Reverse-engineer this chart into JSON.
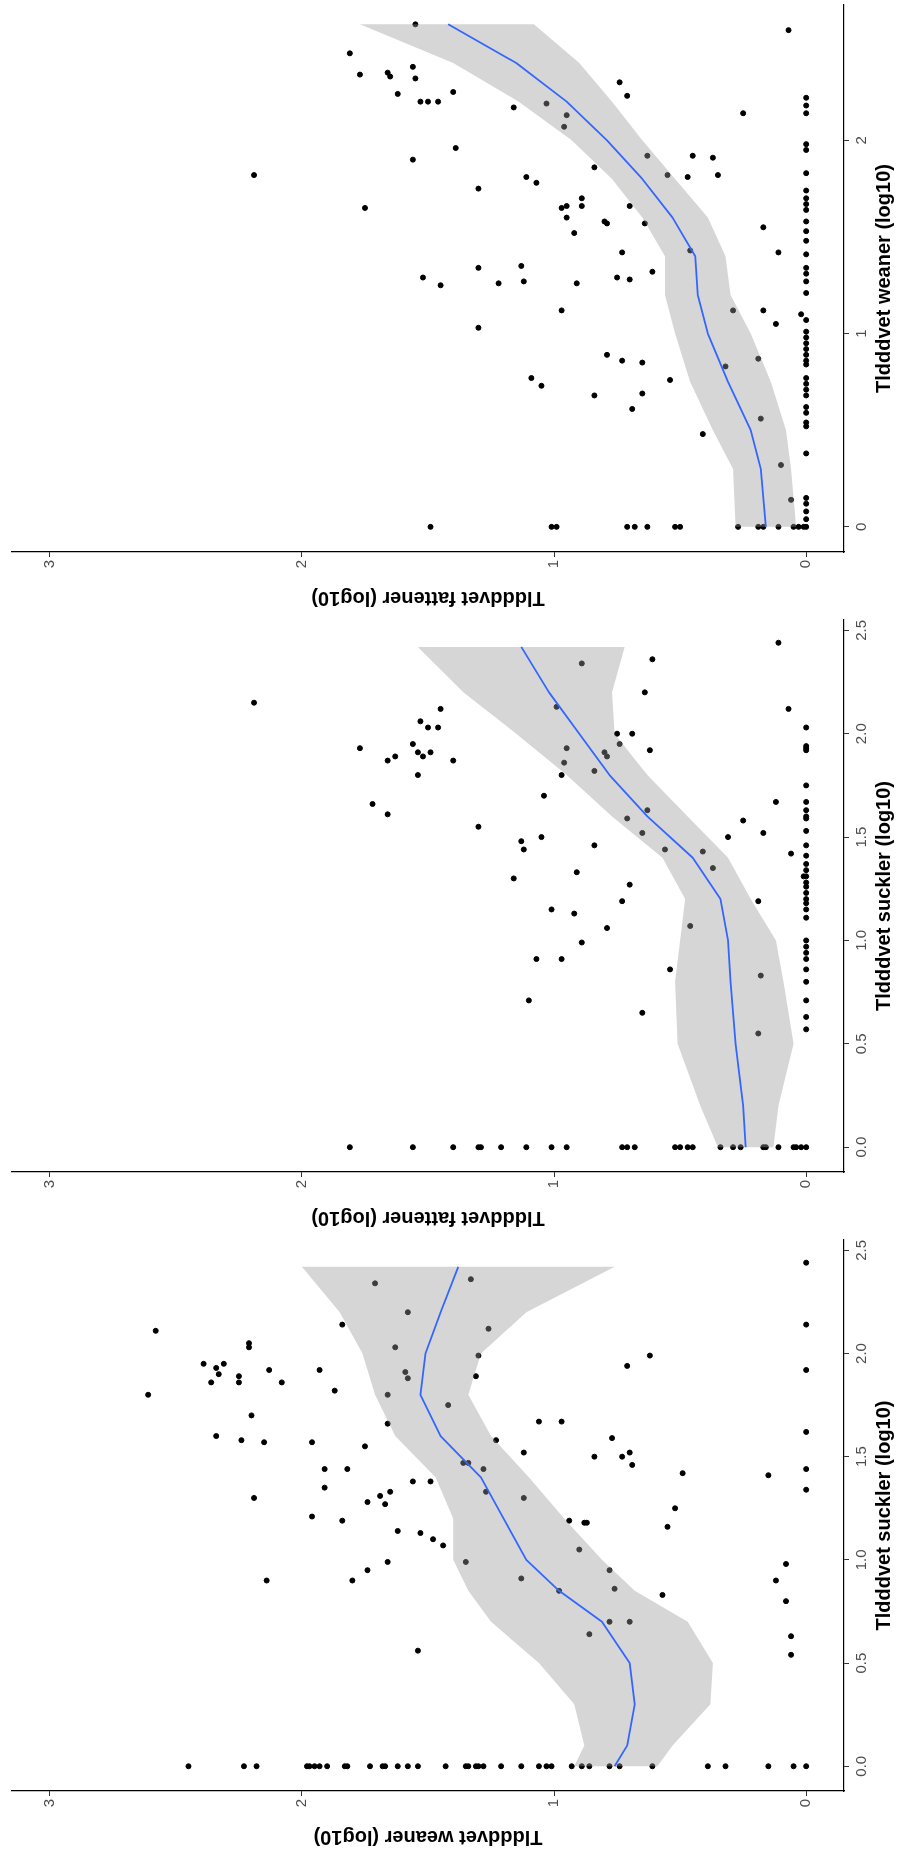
{
  "chart_data": [
    {
      "type": "scatter",
      "xlabel": "Tldddvet weaner (log10)",
      "ylabel": "Tldddvet suckler (log10)",
      "xlim": [
        3.15,
        -0.15
      ],
      "xticks": [
        0,
        1,
        2,
        3
      ],
      "ylim": [
        -0.12,
        2.55
      ],
      "yticks": [
        {
          "value": 0,
          "label": "0.0"
        },
        {
          "value": 0.5,
          "label": "0.5"
        },
        {
          "value": 1,
          "label": "1.0"
        },
        {
          "value": 1.5,
          "label": "1.5"
        },
        {
          "value": 2,
          "label": "2.0"
        },
        {
          "value": 2.5,
          "label": "2.5"
        }
      ],
      "series": [
        {
          "type": "scatter",
          "color": "#000000",
          "marker": "circle",
          "values": [
            0,
            0,
            0,
            0,
            0,
            0,
            0,
            0,
            0,
            0,
            0,
            0,
            0,
            0,
            0,
            0,
            0,
            0,
            0,
            0,
            0,
            0,
            0,
            0,
            0,
            0,
            0,
            0,
            0,
            0,
            0,
            0,
            0,
            0,
            0,
            0,
            0,
            0,
            1.21,
            1.19,
            1.14,
            1.13,
            1.1,
            1.07,
            1.19,
            1.18,
            1.18,
            1.16,
            1.05,
            0.9,
            0.9,
            0.95,
            0.99,
            0.99,
            0.91,
            0.85,
            0.95,
            0.86,
            0.83,
            0.7,
            0.7,
            0.64,
            0.56,
            0.9,
            0.98,
            0.8,
            0.63,
            0.54,
            2.44,
            2.14,
            1.92,
            1.62,
            1.44,
            1.34,
            2.11,
            1.8,
            1.95,
            1.93,
            1.95,
            1.9,
            1.86,
            1.86,
            1.89,
            2.05,
            2.03,
            1.92,
            1.86,
            1.7,
            1.6,
            1.58,
            1.57,
            1.92,
            1.82,
            2.14,
            2.34,
            2.2,
            2.03,
            1.91,
            1.88,
            1.8,
            1.66,
            1.75,
            1.57,
            1.44,
            1.44,
            1.55,
            1.35,
            1.28,
            1.31,
            1.27,
            1.33,
            1.38,
            1.38,
            1.3,
            1.25,
            2.36,
            2.12,
            1.99,
            1.89,
            1.47,
            1.47,
            1.44,
            1.33,
            1.58,
            1.52,
            1.3,
            1.67,
            1.67,
            1.5,
            1.59,
            1.5,
            1.52,
            1.46,
            1.94,
            1.99,
            1.42,
            1.41
          ],
          "x": [
            2.45,
            2.23,
            2.18,
            1.98,
            1.97,
            1.95,
            1.93,
            1.9,
            1.83,
            1.82,
            1.73,
            1.68,
            1.67,
            1.62,
            1.58,
            1.54,
            1.43,
            1.35,
            1.34,
            1.31,
            1.3,
            1.28,
            1.21,
            1.13,
            1.06,
            1.03,
            1.01,
            0.93,
            0.89,
            0.86,
            0.78,
            0.74,
            0.61,
            0.39,
            0.32,
            0.15,
            0.05,
            0,
            1.96,
            1.84,
            1.62,
            1.53,
            1.48,
            1.44,
            0.94,
            0.88,
            0.87,
            0.55,
            0.9,
            2.14,
            1.8,
            1.74,
            1.66,
            1.35,
            1.13,
            0.98,
            0.78,
            0.76,
            0.57,
            0.78,
            0.7,
            0.86,
            1.54,
            0.12,
            0.08,
            0.08,
            0.06,
            0.06,
            0,
            0,
            0,
            0,
            0,
            0,
            2.58,
            2.61,
            2.39,
            2.34,
            2.31,
            2.33,
            2.36,
            2.25,
            2.25,
            2.21,
            2.21,
            2.13,
            2.08,
            2.2,
            2.34,
            2.24,
            2.15,
            1.93,
            1.87,
            1.84,
            1.71,
            1.58,
            1.63,
            1.59,
            1.58,
            1.66,
            1.66,
            1.42,
            1.96,
            1.91,
            1.82,
            1.75,
            1.91,
            1.74,
            1.69,
            1.67,
            1.65,
            1.56,
            1.49,
            2.19,
            0.52,
            1.33,
            1.26,
            1.3,
            1.31,
            1.36,
            1.34,
            1.28,
            1.27,
            1.23,
            1.12,
            1.12,
            1.06,
            0.97,
            0.84,
            0.77,
            0.73,
            0.7,
            0.69,
            0.71,
            0.62,
            0.49,
            0.15
          ]
        },
        {
          "type": "area",
          "color": "#999999",
          "x": [
            0.92,
            0.88,
            0.92,
            1.06,
            1.25,
            1.34,
            1.4,
            1.4,
            1.47,
            1.63,
            1.71,
            1.76,
            1.85,
            2.0,
            0.76,
            1.11,
            1.29,
            1.34,
            1.25,
            1.1,
            0.96,
            0.81,
            0.68,
            0.47,
            0.37,
            0.38,
            0.53,
            0.59
          ],
          "values": [
            0,
            0.1,
            0.3,
            0.5,
            0.7,
            0.85,
            1.0,
            1.2,
            1.4,
            1.6,
            1.8,
            2.0,
            2.2,
            2.42,
            2.42,
            2.2,
            2.0,
            1.8,
            1.6,
            1.4,
            1.2,
            1.0,
            0.85,
            0.7,
            0.5,
            0.3,
            0.1,
            0
          ]
        },
        {
          "type": "line",
          "color": "#3366ff",
          "marker": "none",
          "line_style": "solid",
          "x": [
            0.76,
            0.71,
            0.68,
            0.7,
            0.81,
            0.98,
            1.11,
            1.2,
            1.29,
            1.45,
            1.53,
            1.51,
            1.45,
            1.38
          ],
          "values": [
            0,
            0.1,
            0.3,
            0.5,
            0.7,
            0.85,
            1.0,
            1.2,
            1.4,
            1.6,
            1.8,
            2.0,
            2.2,
            2.42
          ]
        }
      ]
    },
    {
      "type": "scatter",
      "xlabel": "Tldddvet fattener (log10)",
      "ylabel": "Tldddvet suckler (log10)",
      "xlim": [
        3.15,
        -0.15
      ],
      "xticks": [
        0,
        1,
        2,
        3
      ],
      "ylim": [
        -0.12,
        2.55
      ],
      "yticks": [
        {
          "value": 0,
          "label": "0.0"
        },
        {
          "value": 0.5,
          "label": "0.5"
        },
        {
          "value": 1,
          "label": "1.0"
        },
        {
          "value": 1.5,
          "label": "1.5"
        },
        {
          "value": 2,
          "label": "2.0"
        },
        {
          "value": 2.5,
          "label": "2.5"
        }
      ],
      "series": [
        {
          "type": "scatter",
          "color": "#000000",
          "marker": "circle",
          "values": [
            2.44,
            2.15,
            2.34,
            2.36,
            2.2,
            2.12,
            2.12,
            2.13,
            2.06,
            2.03,
            2.03,
            1.93,
            1.95,
            1.91,
            1.89,
            1.91,
            1.89,
            1.87,
            1.87,
            1.8,
            1.66,
            1.61,
            2.0,
            2.0,
            1.95,
            1.91,
            1.89,
            1.93,
            1.92,
            1.86,
            1.8,
            1.82,
            1.7,
            1.63,
            1.67,
            1.55,
            1.59,
            1.58,
            1.5,
            1.52,
            1.52,
            1.5,
            1.48,
            1.44,
            1.46,
            1.44,
            1.43,
            1.35,
            1.42,
            1.33,
            1.3,
            1.27,
            1.19,
            1.19,
            1.31,
            2.03,
            1.94,
            1.93,
            1.92,
            1.75,
            1.67,
            1.63,
            1.6,
            1.59,
            1.53,
            1.46,
            1.41,
            1.37,
            1.34,
            1.31,
            1.28,
            1.26,
            1.23,
            1.2,
            1.15,
            1.13,
            1.06,
            1.07,
            0.99,
            0.91,
            0.91,
            0.86,
            0.83,
            0.71,
            0.65,
            0.55,
            1.18,
            1.15,
            1.11,
            1.0,
            0.97,
            0.94,
            0.91,
            0.86,
            0.8,
            0.71,
            0.63,
            0.57,
            0,
            0,
            0,
            0,
            0,
            0,
            0,
            0,
            0,
            0,
            0,
            0,
            0,
            0,
            0,
            0,
            0,
            0,
            0,
            0,
            0,
            0,
            0,
            0,
            0,
            0
          ],
          "x": [
            0.11,
            2.19,
            0.89,
            0.61,
            0.64,
            1.45,
            0.07,
            0.99,
            1.53,
            1.5,
            1.46,
            1.77,
            1.56,
            1.54,
            1.52,
            1.49,
            1.63,
            1.66,
            1.4,
            1.54,
            1.72,
            1.66,
            0.75,
            0.69,
            0.74,
            0.8,
            0.79,
            0.95,
            0.62,
            0.96,
            0.97,
            0.84,
            1.04,
            0.63,
            0.12,
            1.3,
            0.71,
            0.25,
            0.31,
            0.17,
            0.65,
            1.05,
            1.13,
            1.12,
            0.84,
            0.56,
            0.41,
            0.37,
            0.06,
            0.91,
            1.16,
            0.7,
            0.73,
            0.19,
            0.01,
            0,
            0,
            0,
            0,
            0,
            0,
            0,
            0,
            0,
            0,
            0,
            0,
            0,
            0,
            0,
            0,
            0,
            0,
            0,
            1.01,
            0.92,
            0.79,
            0.46,
            0.89,
            1.07,
            0.97,
            0.54,
            0.18,
            1.1,
            0.65,
            0.19,
            0,
            0,
            0,
            0,
            0,
            0,
            0,
            0,
            0,
            0,
            0,
            0,
            1.81,
            1.56,
            1.4,
            1.3,
            1.29,
            1.21,
            1.11,
            1.01,
            0.95,
            0.73,
            0.71,
            0.68,
            0.52,
            0.5,
            0.47,
            0.45,
            0.34,
            0.29,
            0.26,
            0.17,
            0.16,
            0.11,
            0.05,
            0.04,
            0.02,
            0
          ]
        },
        {
          "type": "area",
          "color": "#999999",
          "x": [
            0.35,
            0.42,
            0.51,
            0.52,
            0.5,
            0.48,
            0.57,
            0.77,
            0.95,
            1.15,
            1.36,
            1.54,
            0.72,
            0.77,
            0.76,
            0.63,
            0.47,
            0.31,
            0.22,
            0.12,
            0.09,
            0.05,
            0.11,
            0.13
          ],
          "values": [
            0,
            0.2,
            0.5,
            0.8,
            1.0,
            1.2,
            1.4,
            1.6,
            1.8,
            2.0,
            2.2,
            2.42,
            2.42,
            2.2,
            2.0,
            1.8,
            1.6,
            1.4,
            1.2,
            1.0,
            0.8,
            0.5,
            0.2,
            0
          ]
        },
        {
          "type": "line",
          "color": "#3366ff",
          "marker": "none",
          "line_style": "solid",
          "x": [
            0.24,
            0.25,
            0.28,
            0.3,
            0.31,
            0.34,
            0.45,
            0.63,
            0.78,
            0.9,
            1.02,
            1.13
          ],
          "values": [
            0,
            0.2,
            0.5,
            0.8,
            1.0,
            1.2,
            1.4,
            1.6,
            1.8,
            2.0,
            2.2,
            2.42
          ]
        }
      ]
    },
    {
      "type": "scatter",
      "xlabel": "Tldddvet fattener (log10)",
      "ylabel": "Tldddvet weaner (log10)",
      "xlim": [
        3.15,
        -0.15
      ],
      "xticks": [
        0,
        1,
        2,
        3
      ],
      "ylim": [
        -0.13,
        2.7
      ],
      "yticks": [
        0,
        1,
        2
      ],
      "series": [
        {
          "type": "scatter",
          "color": "#000000",
          "marker": "circle",
          "values": [
            2.6,
            2.57,
            2.45,
            2.34,
            2.35,
            2.33,
            2.38,
            2.32,
            2.24,
            2.2,
            2.2,
            2.2,
            2.25,
            2.3,
            2.23,
            2.17,
            2.19,
            2.13,
            2.07,
            2.14,
            2.22,
            2.18,
            2.14,
            1.96,
            1.9,
            1.82,
            1.92,
            1.92,
            1.91,
            1.82,
            1.82,
            1.81,
            1.86,
            1.81,
            1.78,
            1.75,
            1.65,
            1.65,
            1.66,
            1.7,
            1.66,
            1.6,
            1.52,
            1.58,
            1.57,
            1.66,
            1.57,
            1.55,
            1.43,
            1.42,
            1.42,
            1.34,
            1.35,
            1.27,
            1.29,
            1.25,
            1.26,
            1.26,
            1.29,
            1.28,
            1.32,
            1.12,
            1.12,
            1.12,
            1.98,
            1.95,
            1.83,
            1.74,
            1.7,
            1.67,
            1.64,
            1.58,
            1.53,
            1.48,
            1.41,
            1.34,
            1.31,
            1.27,
            1.21,
            1.03,
            1.05,
            1.1,
            0.89,
            0.86,
            0.85,
            0.87,
            0.83,
            0.77,
            0.73,
            0.76,
            0.68,
            0.69,
            0.61,
            0.56,
            0.48,
            0.32,
            0.14,
            1.07,
            1.01,
            0.98,
            0.95,
            0.92,
            0.89,
            0.86,
            0.84,
            0.77,
            0.74,
            0.71,
            0.68,
            0.62,
            0.59,
            0.54,
            0.52,
            0.38,
            0.15,
            0.12,
            0.08,
            0.04,
            0,
            0,
            0,
            0,
            0,
            0,
            0,
            0,
            0,
            0,
            0,
            0,
            0,
            0,
            0,
            0
          ],
          "x": [
            1.55,
            0.07,
            1.81,
            1.77,
            1.66,
            1.65,
            1.56,
            1.55,
            1.62,
            1.53,
            1.5,
            1.46,
            1.4,
            0.74,
            0.71,
            1.16,
            1.03,
            0.95,
            0.96,
            0.25,
            0,
            0,
            0,
            1.39,
            1.56,
            2.19,
            0.63,
            0.45,
            0.37,
            0.35,
            0.55,
            0.47,
            0.84,
            1.11,
            1.07,
            1.3,
            1.75,
            0.97,
            0.95,
            0.89,
            0.89,
            0.95,
            0.92,
            0.8,
            0.79,
            0.7,
            0.64,
            0.17,
            0.46,
            0.73,
            0.11,
            1.3,
            1.13,
            1.12,
            1.52,
            1.45,
            1.22,
            0.91,
            0.75,
            0.7,
            0.61,
            0.97,
            0.29,
            0.17,
            0,
            0,
            0,
            0,
            0,
            0,
            0,
            0,
            0,
            0,
            0,
            0,
            0,
            0,
            0,
            1.3,
            0.12,
            0.02,
            0.79,
            0.73,
            0.65,
            0.19,
            0.32,
            1.09,
            1.05,
            0.54,
            0.84,
            0.65,
            0.69,
            0.18,
            0.41,
            0.1,
            0.06,
            0,
            0,
            0,
            0,
            0,
            0,
            0,
            0,
            0,
            0,
            0,
            0,
            0,
            0,
            0,
            0,
            0,
            0,
            0,
            0,
            0,
            1.49,
            1.01,
            0.99,
            0.71,
            0.68,
            0.63,
            0.52,
            0.5,
            0.27,
            0.19,
            0.17,
            0.11,
            0.05,
            0.03,
            0.01,
            0
          ]
        },
        {
          "type": "area",
          "color": "#999999",
          "x": [
            0.28,
            0.29,
            0.37,
            0.46,
            0.52,
            0.56,
            0.56,
            0.65,
            0.77,
            0.93,
            1.14,
            1.4,
            1.77,
            1.08,
            0.9,
            0.77,
            0.65,
            0.52,
            0.39,
            0.32,
            0.3,
            0.22,
            0.14,
            0.08,
            0.06,
            0.04
          ],
          "values": [
            0,
            0.3,
            0.5,
            0.75,
            1.0,
            1.2,
            1.4,
            1.6,
            1.8,
            2.0,
            2.2,
            2.4,
            2.6,
            2.6,
            2.4,
            2.2,
            2.0,
            1.8,
            1.6,
            1.4,
            1.2,
            1.0,
            0.75,
            0.5,
            0.3,
            0
          ]
        },
        {
          "type": "line",
          "color": "#3366ff",
          "marker": "none",
          "line_style": "solid",
          "x": [
            0.16,
            0.18,
            0.22,
            0.31,
            0.39,
            0.43,
            0.44,
            0.53,
            0.65,
            0.79,
            0.95,
            1.15,
            1.42
          ],
          "values": [
            0,
            0.3,
            0.5,
            0.75,
            1.0,
            1.2,
            1.4,
            1.6,
            1.8,
            2.0,
            2.2,
            2.4,
            2.6
          ]
        }
      ]
    }
  ]
}
